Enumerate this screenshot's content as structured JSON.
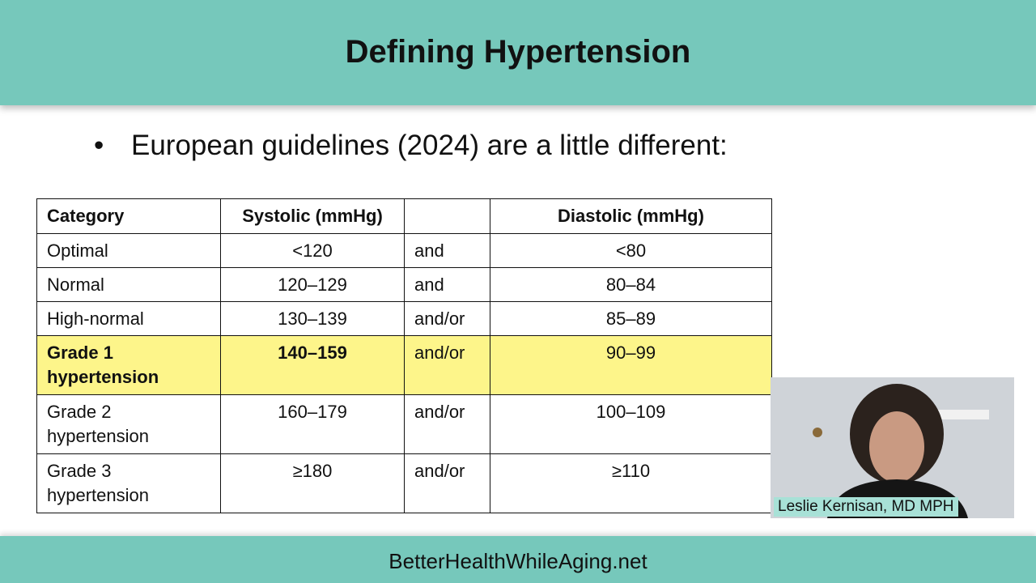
{
  "header": {
    "title": "Defining Hypertension"
  },
  "bullet": "European guidelines (2024) are a little different:",
  "table": {
    "headers": [
      "Category",
      "Systolic (mmHg)",
      null,
      "Diastolic (mmHg)"
    ],
    "rows": [
      [
        "Optimal",
        "<120",
        "and",
        "<80"
      ],
      [
        "Normal",
        "120–129",
        "and",
        "80–84"
      ],
      [
        "High-normal",
        "130–139",
        "and/or",
        "85–89"
      ],
      [
        "Grade 1 hypertension",
        "140–159",
        "and/or",
        "90–99"
      ],
      [
        "Grade 2 hypertension",
        "160–179",
        "and/or",
        "100–109"
      ],
      [
        "Grade 3 hypertension",
        "≥180",
        "and/or",
        "≥110"
      ]
    ],
    "highlighted_row": 3
  },
  "video": {
    "caption": "Leslie Kernisan, MD MPH"
  },
  "footer": {
    "text": "BetterHealthWhileAging.net"
  }
}
